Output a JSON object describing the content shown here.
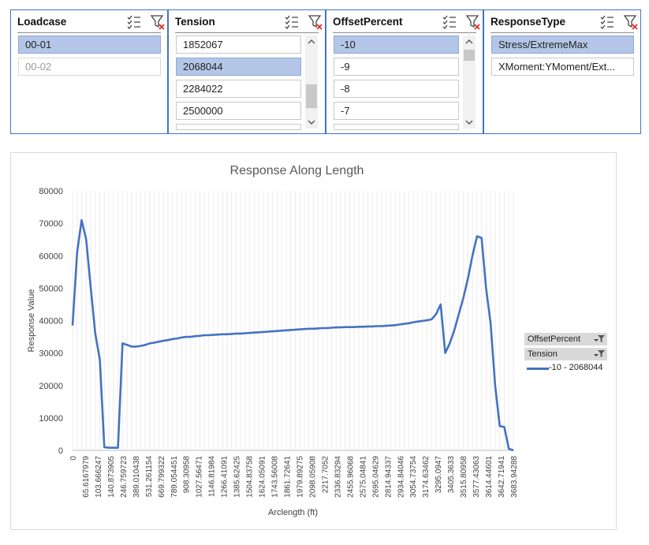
{
  "slicers": {
    "loadcase": {
      "title": "Loadcase",
      "items": [
        "00-01",
        "00-02"
      ]
    },
    "tension": {
      "title": "Tension",
      "items": [
        "1852067",
        "2068044",
        "2284022",
        "2500000"
      ]
    },
    "offset": {
      "title": "OffsetPercent",
      "items": [
        "-10",
        "-9",
        "-8",
        "-7"
      ]
    },
    "response": {
      "title": "ResponseType",
      "items": [
        "Stress/ExtremeMax",
        "XMoment:YMoment/Ext..."
      ]
    }
  },
  "chart_data": {
    "type": "line",
    "title": "Response Along Length",
    "xlabel": "Arclength (ft)",
    "ylabel": "Response Value",
    "ylim": [
      0,
      80000
    ],
    "yticks": [
      "0",
      "10000",
      "20000",
      "30000",
      "40000",
      "50000",
      "60000",
      "70000",
      "80000"
    ],
    "xticks": [
      "0",
      "65.6167979",
      "103.666247",
      "140.873905",
      "246.759723",
      "389.010438",
      "531.261154",
      "669.799322",
      "789.054451",
      "908.30958",
      "1027.56471",
      "1146.81984",
      "1266.41091",
      "1385.62425",
      "1504.83758",
      "1624.05091",
      "1743.56008",
      "1861.72641",
      "1979.89275",
      "2098.05908",
      "2217.7052",
      "2336.83294",
      "2455.96068",
      "2575.04841",
      "2695.04629",
      "2814.94337",
      "2934.84046",
      "3054.73754",
      "3174.63462",
      "3295.0947",
      "3405.3633",
      "3515.80958",
      "3577.43063",
      "3614.44601",
      "3642.71941",
      "3683.94288"
    ],
    "grid": "vertical",
    "legend_position": "right",
    "legend_fields": [
      "OffsetPercent",
      "Tension"
    ],
    "series": [
      {
        "name": "-10 - 2068044",
        "color": "#4472c4",
        "values": [
          38500,
          61000,
          71000,
          65000,
          50000,
          36000,
          28000,
          1000,
          800,
          800,
          800,
          33000,
          32500,
          32000,
          32000,
          32200,
          32500,
          33000,
          33200,
          33500,
          33800,
          34000,
          34300,
          34500,
          34800,
          35000,
          35000,
          35200,
          35300,
          35500,
          35500,
          35600,
          35700,
          35800,
          35800,
          35900,
          36000,
          36000,
          36100,
          36200,
          36300,
          36400,
          36500,
          36600,
          36700,
          36800,
          36900,
          37000,
          37100,
          37200,
          37300,
          37400,
          37500,
          37500,
          37600,
          37700,
          37700,
          37800,
          37900,
          37900,
          38000,
          38000,
          38000,
          38100,
          38100,
          38200,
          38200,
          38300,
          38300,
          38400,
          38500,
          38600,
          38800,
          39000,
          39200,
          39500,
          39700,
          39900,
          40100,
          40400,
          42000,
          45000,
          30000,
          33000,
          37000,
          42000,
          47000,
          53000,
          60000,
          66000,
          65500,
          50000,
          39000,
          20000,
          7500,
          7200,
          500,
          0
        ]
      }
    ]
  }
}
